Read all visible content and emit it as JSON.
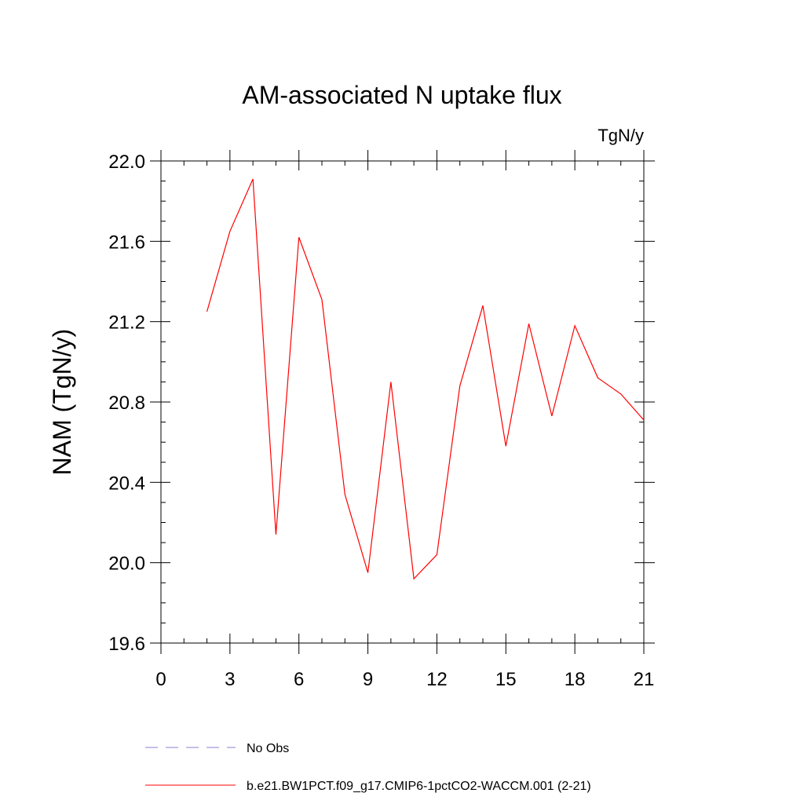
{
  "chart_data": {
    "type": "line",
    "title": "AM-associated N uptake flux",
    "units_label": "TgN/y",
    "xlabel": "",
    "ylabel": "NAM  (TgN/y)",
    "xlim": [
      0,
      21
    ],
    "ylim": [
      19.6,
      22.0
    ],
    "x_ticks": [
      0,
      3,
      6,
      9,
      12,
      15,
      18,
      21
    ],
    "x_tick_labels": [
      "0",
      "3",
      "6",
      "9",
      "12",
      "15",
      "18",
      "21"
    ],
    "y_ticks": [
      19.6,
      20.0,
      20.4,
      20.8,
      21.2,
      21.6,
      22.0
    ],
    "y_tick_labels": [
      "19.6",
      "20.0",
      "20.4",
      "20.8",
      "21.2",
      "21.6",
      "22.0"
    ],
    "grid": false,
    "legend_position": "bottom",
    "series": [
      {
        "name": "b.e21.BW1PCT.f09_g17.CMIP6-1pctCO2-WACCM.001 (2-21)",
        "color": "#ff0000",
        "style": "solid",
        "x": [
          2,
          3,
          4,
          5,
          6,
          7,
          8,
          9,
          10,
          11,
          12,
          13,
          14,
          15,
          16,
          17,
          18,
          19,
          20,
          21
        ],
        "y": [
          21.25,
          21.65,
          21.91,
          20.14,
          21.62,
          21.31,
          20.34,
          19.95,
          20.9,
          19.92,
          20.04,
          20.88,
          21.28,
          20.58,
          21.19,
          20.73,
          21.18,
          20.92,
          20.84,
          20.71
        ]
      }
    ],
    "legend": [
      {
        "label": "No Obs",
        "color": "#8a7fd0",
        "style": "dashed"
      },
      {
        "label": "b.e21.BW1PCT.f09_g17.CMIP6-1pctCO2-WACCM.001 (2-21)",
        "color": "#ff0000",
        "style": "solid"
      }
    ]
  }
}
